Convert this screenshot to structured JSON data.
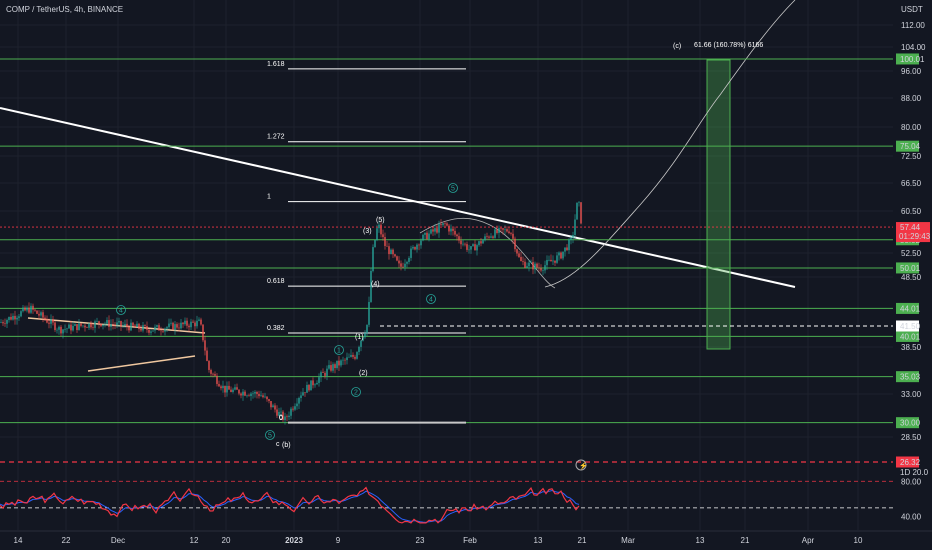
{
  "header": {
    "title": "COMP / TetherUS, 4h, BINANCE",
    "currency": "USDT"
  },
  "chart_data": {
    "type": "candlestick",
    "ylim": [
      27,
      120
    ],
    "rsi_ylim": [
      25,
      95
    ],
    "x_tick_labels": [
      "14",
      "22",
      "Dec",
      "12",
      "20",
      "2023",
      "9",
      "23",
      "Feb",
      "13",
      "21",
      "Mar",
      "13",
      "21",
      "Apr",
      "10"
    ],
    "y_tick_labels": [
      "112.00",
      "104.00",
      "96.00",
      "88.00",
      "80.00",
      "72.50",
      "66.50",
      "60.50",
      "52.50",
      "48.50",
      "38.50",
      "33.00",
      "28.50"
    ],
    "rsi_tick_labels": [
      "80.00",
      "40.00"
    ],
    "levels": [
      {
        "label": "100.01",
        "value": 100.01,
        "color": "#4caf50"
      },
      {
        "label": "75.04",
        "value": 75.04,
        "color": "#4caf50"
      },
      {
        "label": "55.02",
        "value": 55.02,
        "color": "#4caf50"
      },
      {
        "label": "50.01",
        "value": 50.01,
        "color": "#4caf50"
      },
      {
        "label": "44.01",
        "value": 44.01,
        "color": "#4caf50"
      },
      {
        "label": "40.01",
        "value": 40.01,
        "color": "#4caf50"
      },
      {
        "label": "35.03",
        "value": 35.03,
        "color": "#4caf50"
      },
      {
        "label": "30.00",
        "value": 30.0,
        "color": "#4caf50"
      },
      {
        "label": "41.50",
        "value": 41.5,
        "color": "#ffffff",
        "style": "dashed"
      },
      {
        "label": "26.32",
        "value": 26.32,
        "color": "#f23645",
        "style": "dashed",
        "pane": "rsi"
      }
    ],
    "current_price": {
      "label": "57.44",
      "value": 57.44,
      "countdown": "01:29:43",
      "color": "#f23645"
    },
    "small_label": "1D 20.0",
    "fib_levels": [
      {
        "label": "1.618",
        "value": 96.7
      },
      {
        "label": "1.272",
        "value": 76.2
      },
      {
        "label": "1",
        "value": 62.5
      },
      {
        "label": "0.618",
        "value": 47.2
      },
      {
        "label": "0.382",
        "value": 40.5
      },
      {
        "label": "0",
        "value": 30.0
      }
    ],
    "target_annotation": "61.66 (160.78%) 6166",
    "wave_labels": [
      {
        "text": "(c)",
        "color": "#ffffff"
      },
      {
        "text": "(5)",
        "color": "#ffffff"
      },
      {
        "text": "(3)",
        "color": "#ffffff"
      },
      {
        "text": "(4)",
        "color": "#ffffff"
      },
      {
        "text": "(1)",
        "color": "#ffffff"
      },
      {
        "text": "(2)",
        "color": "#ffffff"
      },
      {
        "text": "0",
        "color": "#ffffff"
      },
      {
        "text": "c",
        "color": "#ffffff"
      },
      {
        "text": "(b)",
        "color": "#ffffff"
      },
      {
        "text": "5",
        "color": "#26a69a",
        "circle": true
      },
      {
        "text": "4",
        "color": "#26a69a",
        "circle": true
      },
      {
        "text": "4",
        "color": "#26a69a",
        "circle": true
      },
      {
        "text": "1",
        "color": "#26a69a",
        "circle": true
      },
      {
        "text": "2",
        "color": "#26a69a",
        "circle": true
      },
      {
        "text": "5",
        "color": "#26a69a",
        "circle": true
      },
      {
        "text": "4",
        "color": "#26a69a",
        "circle": true
      }
    ],
    "colors": {
      "up": "#26a69a",
      "down": "#ef5350",
      "background": "#131722",
      "grid": "#1e222d",
      "level": "#4caf50",
      "rsi_line": "#2962ff",
      "rsi_signal": "#f23645"
    }
  }
}
